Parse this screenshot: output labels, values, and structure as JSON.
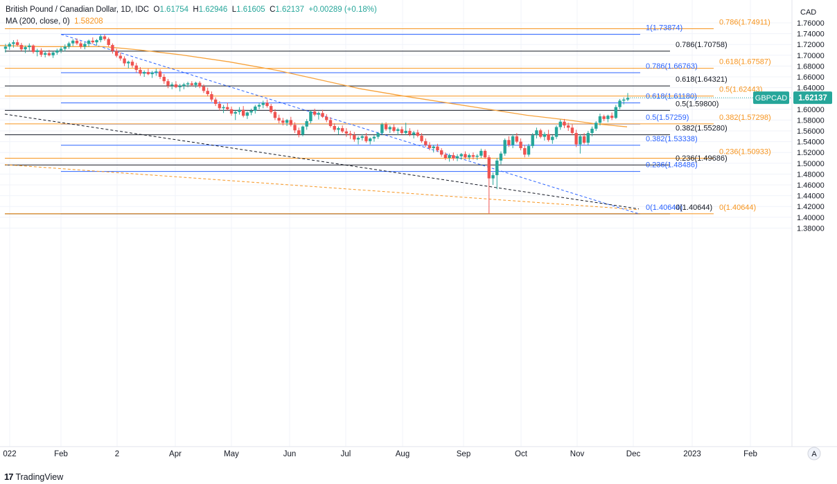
{
  "header": {
    "title": "British Pound / Canadian Dollar, 1D, IDC",
    "open_label": "O",
    "open": "1.61754",
    "high_label": "H",
    "high": "1.62946",
    "low_label": "L",
    "low": "1.61605",
    "close_label": "C",
    "close": "1.62137",
    "change": "+0.00289 (+0.18%)",
    "ma_label": "MA (200, close, 0)",
    "ma_value": "1.58208"
  },
  "footer": {
    "brand": "TradingView",
    "logo_text": "17"
  },
  "colors": {
    "up": "#26a69a",
    "down": "#ef5350",
    "ma": "#f7a23b",
    "blue": "#2962ff",
    "orange": "#f7941d",
    "black": "#131722"
  },
  "chart_data": {
    "type": "candlestick",
    "symbol_tag": "GBPCAD",
    "last_price": "1.62137",
    "currency": "CAD",
    "y_axis_ticks": [
      "1.76000",
      "1.74000",
      "1.72000",
      "1.70000",
      "1.68000",
      "1.66000",
      "1.64000",
      "1.62000",
      "1.60000",
      "1.58000",
      "1.56000",
      "1.54000",
      "1.52000",
      "1.50000",
      "1.48000",
      "1.46000",
      "1.44000",
      "1.42000",
      "1.40000",
      "1.38000"
    ],
    "ylim": [
      1.375,
      1.765
    ],
    "x_axis_labels": [
      "022",
      "Feb",
      "2",
      "Apr",
      "May",
      "Jun",
      "Jul",
      "Aug",
      "Sep",
      "Oct",
      "Nov",
      "Dec",
      "2023",
      "Feb"
    ],
    "fib_levels": [
      {
        "label": "0.786(1.74911)",
        "value": 1.74911,
        "color": "orange"
      },
      {
        "label": "1(1.73874)",
        "value": 1.73874,
        "color": "blue"
      },
      {
        "label": "0.786(1.70758)",
        "value": 1.70758,
        "color": "black"
      },
      {
        "label": "0.618(1.67587)",
        "value": 1.67587,
        "color": "orange"
      },
      {
        "label": "0.786(1.66763)",
        "value": 1.66763,
        "color": "blue"
      },
      {
        "label": "0.618(1.64321)",
        "value": 1.64321,
        "color": "black"
      },
      {
        "label": "0.5(1.62443)",
        "value": 1.62443,
        "color": "orange"
      },
      {
        "label": "0.618(1.61180)",
        "value": 1.6118,
        "color": "blue"
      },
      {
        "label": "0.5(1.59800)",
        "value": 1.598,
        "color": "black"
      },
      {
        "label": "0.5(1.57259)",
        "value": 1.57259,
        "color": "blue"
      },
      {
        "label": "0.382(1.57298)",
        "value": 1.57298,
        "color": "orange"
      },
      {
        "label": "0.382(1.55280)",
        "value": 1.5528,
        "color": "black"
      },
      {
        "label": "0.382(1.53338)",
        "value": 1.53338,
        "color": "blue"
      },
      {
        "label": "0.236(1.50933)",
        "value": 1.50933,
        "color": "orange"
      },
      {
        "label": "0.236(1.49686)",
        "value": 1.49686,
        "color": "black"
      },
      {
        "label": "0.236(1.48486)",
        "value": 1.48486,
        "color": "blue"
      },
      {
        "label": "0(1.40644)",
        "value": 1.40644,
        "color": "blue"
      },
      {
        "label": "0(1.40644)",
        "value": 1.40644,
        "color": "black"
      },
      {
        "label": "0(1.40644)",
        "value": 1.40644,
        "color": "orange"
      }
    ],
    "moving_average": {
      "name": "MA (200, close, 0)",
      "points": [
        [
          0,
          1.718
        ],
        [
          60,
          1.716
        ],
        [
          150,
          1.716
        ],
        [
          200,
          1.71
        ],
        [
          260,
          1.701
        ],
        [
          330,
          1.688
        ],
        [
          400,
          1.672
        ],
        [
          460,
          1.655
        ],
        [
          520,
          1.638
        ],
        [
          580,
          1.625
        ],
        [
          640,
          1.613
        ],
        [
          700,
          1.601
        ],
        [
          760,
          1.589
        ],
        [
          820,
          1.58
        ],
        [
          860,
          1.573
        ],
        [
          905,
          1.5675
        ]
      ]
    },
    "trendlines": [
      {
        "color": "blue",
        "from": [
          88,
          1.7387
        ],
        "to": [
          922,
          1.4064
        ]
      },
      {
        "color": "black",
        "from": [
          7,
          1.591
        ],
        "to": [
          922,
          1.4155
        ]
      },
      {
        "color": "orange",
        "from": [
          7,
          1.4975
        ],
        "to": [
          922,
          1.414
        ]
      }
    ],
    "candles": [
      [
        1.712,
        1.721,
        1.705,
        1.716
      ],
      [
        1.716,
        1.724,
        1.71,
        1.721
      ],
      [
        1.721,
        1.728,
        1.714,
        1.724
      ],
      [
        1.724,
        1.729,
        1.716,
        1.719
      ],
      [
        1.719,
        1.723,
        1.708,
        1.711
      ],
      [
        1.711,
        1.718,
        1.704,
        1.715
      ],
      [
        1.715,
        1.722,
        1.709,
        1.718
      ],
      [
        1.718,
        1.72,
        1.703,
        1.706
      ],
      [
        1.706,
        1.712,
        1.698,
        1.709
      ],
      [
        1.709,
        1.713,
        1.697,
        1.701
      ],
      [
        1.701,
        1.708,
        1.696,
        1.704
      ],
      [
        1.704,
        1.71,
        1.698,
        1.7
      ],
      [
        1.7,
        1.707,
        1.695,
        1.705
      ],
      [
        1.705,
        1.712,
        1.701,
        1.709
      ],
      [
        1.709,
        1.716,
        1.704,
        1.712
      ],
      [
        1.712,
        1.72,
        1.707,
        1.716
      ],
      [
        1.716,
        1.725,
        1.712,
        1.722
      ],
      [
        1.722,
        1.73,
        1.717,
        1.727
      ],
      [
        1.727,
        1.731,
        1.719,
        1.722
      ],
      [
        1.722,
        1.726,
        1.712,
        1.716
      ],
      [
        1.716,
        1.724,
        1.711,
        1.721
      ],
      [
        1.721,
        1.729,
        1.716,
        1.727
      ],
      [
        1.727,
        1.733,
        1.721,
        1.724
      ],
      [
        1.724,
        1.73,
        1.718,
        1.728
      ],
      [
        1.728,
        1.738,
        1.724,
        1.735
      ],
      [
        1.735,
        1.739,
        1.727,
        1.73
      ],
      [
        1.73,
        1.733,
        1.716,
        1.719
      ],
      [
        1.719,
        1.722,
        1.703,
        1.708
      ],
      [
        1.708,
        1.712,
        1.696,
        1.699
      ],
      [
        1.699,
        1.705,
        1.69,
        1.694
      ],
      [
        1.694,
        1.698,
        1.68,
        1.685
      ],
      [
        1.685,
        1.69,
        1.676,
        1.688
      ],
      [
        1.688,
        1.692,
        1.677,
        1.681
      ],
      [
        1.681,
        1.686,
        1.668,
        1.673
      ],
      [
        1.673,
        1.678,
        1.662,
        1.666
      ],
      [
        1.666,
        1.672,
        1.66,
        1.669
      ],
      [
        1.669,
        1.675,
        1.663,
        1.665
      ],
      [
        1.665,
        1.671,
        1.658,
        1.668
      ],
      [
        1.668,
        1.675,
        1.662,
        1.67
      ],
      [
        1.67,
        1.674,
        1.656,
        1.66
      ],
      [
        1.66,
        1.665,
        1.647,
        1.652
      ],
      [
        1.652,
        1.656,
        1.639,
        1.644
      ],
      [
        1.644,
        1.65,
        1.637,
        1.646
      ],
      [
        1.646,
        1.652,
        1.639,
        1.641
      ],
      [
        1.641,
        1.647,
        1.633,
        1.643
      ],
      [
        1.643,
        1.649,
        1.637,
        1.646
      ],
      [
        1.646,
        1.651,
        1.641,
        1.648
      ],
      [
        1.648,
        1.652,
        1.642,
        1.645
      ],
      [
        1.645,
        1.651,
        1.64,
        1.649
      ],
      [
        1.649,
        1.652,
        1.639,
        1.642
      ],
      [
        1.642,
        1.646,
        1.63,
        1.634
      ],
      [
        1.634,
        1.64,
        1.624,
        1.628
      ],
      [
        1.628,
        1.633,
        1.614,
        1.618
      ],
      [
        1.618,
        1.622,
        1.606,
        1.61
      ],
      [
        1.61,
        1.615,
        1.598,
        1.602
      ],
      [
        1.602,
        1.608,
        1.593,
        1.604
      ],
      [
        1.604,
        1.612,
        1.598,
        1.6
      ],
      [
        1.6,
        1.605,
        1.588,
        1.592
      ],
      [
        1.592,
        1.598,
        1.58,
        1.595
      ],
      [
        1.595,
        1.604,
        1.59,
        1.599
      ],
      [
        1.599,
        1.606,
        1.585,
        1.588
      ],
      [
        1.588,
        1.596,
        1.582,
        1.594
      ],
      [
        1.594,
        1.601,
        1.589,
        1.597
      ],
      [
        1.597,
        1.608,
        1.592,
        1.605
      ],
      [
        1.605,
        1.612,
        1.6,
        1.608
      ],
      [
        1.608,
        1.616,
        1.602,
        1.612
      ],
      [
        1.612,
        1.618,
        1.603,
        1.606
      ],
      [
        1.606,
        1.61,
        1.592,
        1.595
      ],
      [
        1.595,
        1.6,
        1.58,
        1.584
      ],
      [
        1.584,
        1.59,
        1.574,
        1.579
      ],
      [
        1.579,
        1.584,
        1.57,
        1.575
      ],
      [
        1.575,
        1.582,
        1.569,
        1.58
      ],
      [
        1.58,
        1.586,
        1.568,
        1.571
      ],
      [
        1.571,
        1.576,
        1.556,
        1.561
      ],
      [
        1.561,
        1.566,
        1.548,
        1.553
      ],
      [
        1.553,
        1.57,
        1.55,
        1.568
      ],
      [
        1.568,
        1.582,
        1.562,
        1.578
      ],
      [
        1.578,
        1.598,
        1.574,
        1.596
      ],
      [
        1.596,
        1.601,
        1.587,
        1.59
      ],
      [
        1.59,
        1.596,
        1.581,
        1.593
      ],
      [
        1.593,
        1.599,
        1.584,
        1.586
      ],
      [
        1.586,
        1.591,
        1.576,
        1.58
      ],
      [
        1.58,
        1.585,
        1.566,
        1.569
      ],
      [
        1.569,
        1.574,
        1.558,
        1.562
      ],
      [
        1.562,
        1.568,
        1.553,
        1.565
      ],
      [
        1.565,
        1.57,
        1.556,
        1.559
      ],
      [
        1.559,
        1.565,
        1.549,
        1.555
      ],
      [
        1.555,
        1.56,
        1.545,
        1.552
      ],
      [
        1.552,
        1.558,
        1.54,
        1.544
      ],
      [
        1.544,
        1.55,
        1.535,
        1.547
      ],
      [
        1.547,
        1.554,
        1.542,
        1.55
      ],
      [
        1.55,
        1.556,
        1.538,
        1.541
      ],
      [
        1.541,
        1.548,
        1.535,
        1.546
      ],
      [
        1.546,
        1.552,
        1.54,
        1.549
      ],
      [
        1.549,
        1.558,
        1.545,
        1.556
      ],
      [
        1.556,
        1.575,
        1.552,
        1.572
      ],
      [
        1.572,
        1.576,
        1.56,
        1.563
      ],
      [
        1.563,
        1.57,
        1.556,
        1.567
      ],
      [
        1.567,
        1.572,
        1.557,
        1.56
      ],
      [
        1.56,
        1.566,
        1.552,
        1.563
      ],
      [
        1.563,
        1.568,
        1.553,
        1.556
      ],
      [
        1.556,
        1.575,
        1.552,
        1.56
      ],
      [
        1.56,
        1.565,
        1.55,
        1.553
      ],
      [
        1.553,
        1.56,
        1.546,
        1.557
      ],
      [
        1.557,
        1.562,
        1.548,
        1.551
      ],
      [
        1.551,
        1.556,
        1.538,
        1.541
      ],
      [
        1.541,
        1.546,
        1.53,
        1.534
      ],
      [
        1.534,
        1.539,
        1.524,
        1.528
      ],
      [
        1.528,
        1.534,
        1.52,
        1.531
      ],
      [
        1.531,
        1.536,
        1.521,
        1.524
      ],
      [
        1.524,
        1.528,
        1.512,
        1.516
      ],
      [
        1.516,
        1.52,
        1.506,
        1.51
      ],
      [
        1.51,
        1.518,
        1.503,
        1.515
      ],
      [
        1.515,
        1.52,
        1.505,
        1.509
      ],
      [
        1.509,
        1.517,
        1.504,
        1.513
      ],
      [
        1.513,
        1.519,
        1.507,
        1.517
      ],
      [
        1.517,
        1.522,
        1.508,
        1.511
      ],
      [
        1.511,
        1.518,
        1.506,
        1.515
      ],
      [
        1.515,
        1.52,
        1.507,
        1.512
      ],
      [
        1.512,
        1.517,
        1.506,
        1.514
      ],
      [
        1.514,
        1.527,
        1.51,
        1.523
      ],
      [
        1.523,
        1.526,
        1.508,
        1.511
      ],
      [
        1.511,
        1.515,
        1.407,
        1.472
      ],
      [
        1.472,
        1.483,
        1.46,
        1.478
      ],
      [
        1.478,
        1.51,
        1.452,
        1.505
      ],
      [
        1.505,
        1.522,
        1.498,
        1.518
      ],
      [
        1.518,
        1.546,
        1.514,
        1.543
      ],
      [
        1.543,
        1.55,
        1.53,
        1.534
      ],
      [
        1.534,
        1.554,
        1.528,
        1.55
      ],
      [
        1.55,
        1.556,
        1.537,
        1.54
      ],
      [
        1.54,
        1.546,
        1.524,
        1.528
      ],
      [
        1.528,
        1.534,
        1.511,
        1.516
      ],
      [
        1.516,
        1.536,
        1.512,
        1.532
      ],
      [
        1.532,
        1.556,
        1.528,
        1.552
      ],
      [
        1.552,
        1.566,
        1.546,
        1.561
      ],
      [
        1.561,
        1.564,
        1.546,
        1.549
      ],
      [
        1.549,
        1.558,
        1.542,
        1.554
      ],
      [
        1.554,
        1.562,
        1.54,
        1.543
      ],
      [
        1.543,
        1.552,
        1.536,
        1.549
      ],
      [
        1.549,
        1.57,
        1.545,
        1.567
      ],
      [
        1.567,
        1.581,
        1.562,
        1.577
      ],
      [
        1.577,
        1.582,
        1.565,
        1.57
      ],
      [
        1.57,
        1.575,
        1.56,
        1.566
      ],
      [
        1.566,
        1.572,
        1.552,
        1.556
      ],
      [
        1.556,
        1.562,
        1.53,
        1.535
      ],
      [
        1.535,
        1.554,
        1.518,
        1.55
      ],
      [
        1.55,
        1.556,
        1.535,
        1.538
      ],
      [
        1.538,
        1.56,
        1.533,
        1.556
      ],
      [
        1.556,
        1.568,
        1.55,
        1.564
      ],
      [
        1.564,
        1.578,
        1.56,
        1.575
      ],
      [
        1.575,
        1.592,
        1.57,
        1.587
      ],
      [
        1.587,
        1.59,
        1.578,
        1.582
      ],
      [
        1.582,
        1.59,
        1.576,
        1.588
      ],
      [
        1.588,
        1.594,
        1.58,
        1.584
      ],
      [
        1.584,
        1.608,
        1.582,
        1.604
      ],
      [
        1.604,
        1.619,
        1.6,
        1.616
      ],
      [
        1.616,
        1.622,
        1.609,
        1.618
      ],
      [
        1.618,
        1.63,
        1.615,
        1.621
      ]
    ]
  }
}
